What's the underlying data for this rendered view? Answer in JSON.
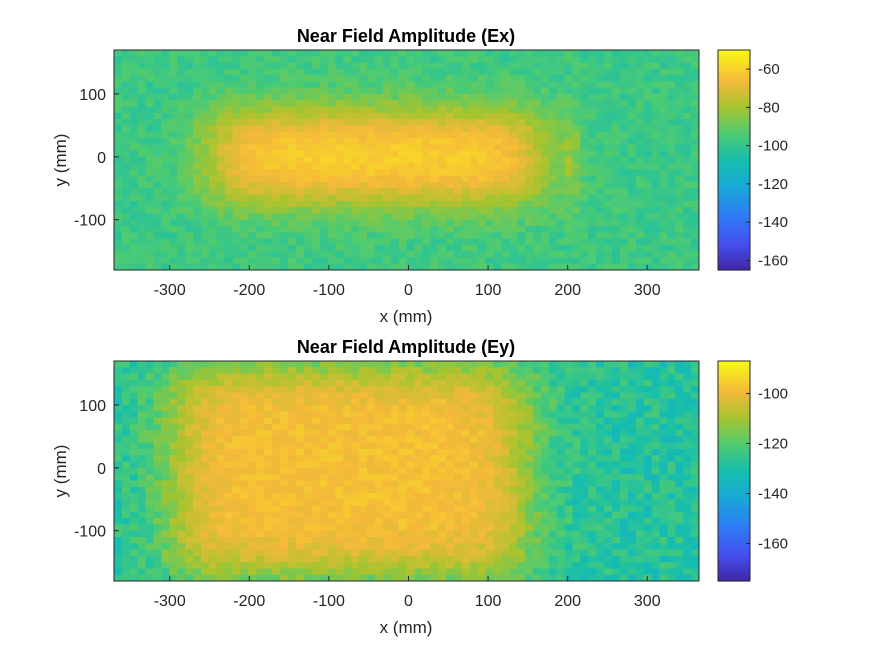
{
  "chart_data": [
    {
      "type": "heatmap",
      "title": "Near Field Amplitude (Ex)",
      "xlabel": "x (mm)",
      "ylabel": "y (mm)",
      "xlim": [
        -370,
        365
      ],
      "ylim": [
        -180,
        170
      ],
      "xticks": [
        -300,
        -200,
        -100,
        0,
        100,
        200,
        300
      ],
      "yticks": [
        -100,
        0,
        100
      ],
      "colormap": "parula",
      "grid": false,
      "colorbar": {
        "clim": [
          -165,
          -50
        ],
        "ticks": [
          -60,
          -80,
          -100,
          -120,
          -140,
          -160
        ]
      },
      "field_model": {
        "background_dB": -98,
        "peak_dB": -58,
        "source_x_range_mm": [
          -250,
          170
        ],
        "source_y_range_mm": [
          -70,
          70
        ],
        "right_lobe_x_mm": 200,
        "right_lobe_dB": -80,
        "noise_dB": 10
      }
    },
    {
      "type": "heatmap",
      "title": "Near Field Amplitude (Ey)",
      "xlabel": "x (mm)",
      "ylabel": "y (mm)",
      "xlim": [
        -370,
        365
      ],
      "ylim": [
        -180,
        170
      ],
      "xticks": [
        -300,
        -200,
        -100,
        0,
        100,
        200,
        300
      ],
      "yticks": [
        -100,
        0,
        100
      ],
      "colormap": "parula",
      "grid": false,
      "colorbar": {
        "clim": [
          -175,
          -87
        ],
        "ticks": [
          -100,
          -120,
          -140,
          -160
        ]
      },
      "field_model": {
        "background_dB": -128,
        "peak_dB": -98,
        "source_x_range_mm": [
          -300,
          150
        ],
        "source_y_range_mm": [
          -170,
          160
        ],
        "right_lobe_x_mm": null,
        "right_lobe_dB": null,
        "noise_dB": 12
      }
    }
  ]
}
